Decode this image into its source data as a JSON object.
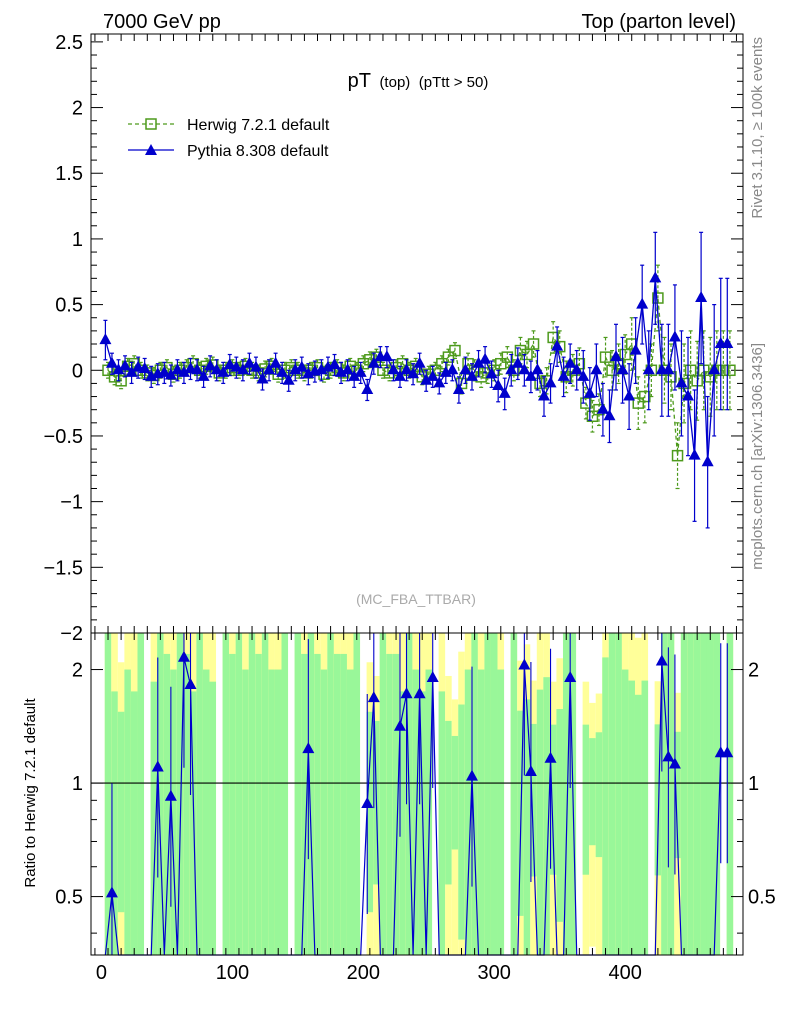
{
  "header": {
    "left": "7000 GeV pp",
    "right": "Top (parton level)"
  },
  "plot_title": {
    "main": "pT",
    "sub1": "(top)",
    "sub2": "(pTtt > 50)"
  },
  "watermark": "(MC_FBA_TTBAR)",
  "side_text": {
    "rivet": "Rivet 3.1.10, ≥ 100k events",
    "mcplots": "mcplots.cern.ch [arXiv:1306.3436]"
  },
  "legend": [
    {
      "label": "Herwig 7.2.1 default"
    },
    {
      "label": "Pythia 8.308 default"
    }
  ],
  "ratio_ylabel": "Ratio to Herwig 7.2.1 default",
  "colors": {
    "herwig": "#4d9a1c",
    "pythia": "#0000cc",
    "band_green": "#99f799",
    "band_yellow": "#ffff99",
    "side_text": "#888888"
  },
  "chart_data": {
    "type": "line",
    "xlim": [
      -8,
      490
    ],
    "main": {
      "ylim": [
        -2,
        2.56
      ],
      "y_tick_labels": [
        "2.5",
        "2",
        "1.5",
        "1",
        "0.5",
        "0",
        "−0.5",
        "−1",
        "−1.5",
        "−2"
      ],
      "y_tick_values": [
        2.5,
        2,
        1.5,
        1,
        0.5,
        0,
        -0.5,
        -1,
        -1.5,
        -2
      ]
    },
    "ratio": {
      "ylim": [
        0.35,
        2.5
      ],
      "log_scale": true,
      "y_tick_labels": [
        "2",
        "1",
        "0.5"
      ],
      "y_tick_values": [
        2,
        1,
        0.5
      ]
    },
    "x_tick_labels": [
      "0",
      "100",
      "200",
      "300",
      "400"
    ],
    "x_tick_values": [
      0,
      100,
      200,
      300,
      400
    ],
    "series": [
      {
        "name": "Herwig 7.2.1 default",
        "marker": "open-square",
        "style": "dashed",
        "x": [
          5,
          10,
          15,
          20,
          25,
          30,
          35,
          40,
          45,
          50,
          55,
          60,
          65,
          70,
          75,
          80,
          85,
          90,
          95,
          100,
          105,
          110,
          115,
          120,
          125,
          130,
          135,
          140,
          145,
          150,
          155,
          160,
          165,
          170,
          175,
          180,
          185,
          190,
          195,
          200,
          205,
          210,
          215,
          220,
          225,
          230,
          235,
          240,
          245,
          250,
          255,
          260,
          265,
          270,
          275,
          280,
          285,
          290,
          295,
          300,
          305,
          310,
          315,
          320,
          325,
          330,
          335,
          340,
          345,
          350,
          355,
          360,
          365,
          370,
          375,
          380,
          385,
          390,
          395,
          400,
          405,
          410,
          415,
          420,
          425,
          430,
          435,
          440,
          445,
          450,
          455,
          460,
          465,
          470,
          475,
          480
        ],
        "y": [
          0.0,
          -0.05,
          -0.08,
          0.03,
          0.05,
          0.0,
          -0.02,
          -0.04,
          0.0,
          0.02,
          -0.03,
          0.0,
          0.02,
          0.05,
          0.0,
          0.03,
          0.04,
          -0.02,
          0.0,
          0.02,
          0.0,
          0.03,
          0.0,
          -0.02,
          0.01,
          0.03,
          -0.03,
          0.0,
          0.02,
          0.0,
          -0.02,
          0.0,
          0.02,
          -0.03,
          0.0,
          0.02,
          -0.02,
          0.03,
          0.0,
          0.05,
          0.08,
          0.1,
          0.0,
          -0.02,
          0.02,
          0.05,
          0.0,
          0.03,
          -0.05,
          -0.03,
          0.0,
          0.05,
          0.1,
          0.15,
          -0.1,
          0.05,
          0.0,
          -0.05,
          -0.02,
          0.0,
          0.05,
          0.1,
          0.0,
          0.15,
          0.12,
          0.2,
          -0.1,
          -0.08,
          0.25,
          0.18,
          -0.05,
          0.0,
          0.05,
          -0.25,
          -0.35,
          -0.3,
          0.1,
          0.0,
          0.05,
          0.12,
          0.2,
          -0.25,
          -0.2,
          0.0,
          0.55,
          0.0,
          -0.05,
          -0.65,
          -0.1,
          0.0,
          -0.08,
          0.0,
          -0.05,
          0.0,
          0.0,
          0.0
        ],
        "yerr": [
          0.06,
          0.06,
          0.06,
          0.06,
          0.06,
          0.06,
          0.06,
          0.06,
          0.06,
          0.06,
          0.06,
          0.06,
          0.06,
          0.06,
          0.06,
          0.06,
          0.06,
          0.06,
          0.06,
          0.06,
          0.06,
          0.06,
          0.06,
          0.06,
          0.06,
          0.06,
          0.06,
          0.06,
          0.06,
          0.06,
          0.06,
          0.06,
          0.06,
          0.06,
          0.06,
          0.06,
          0.06,
          0.06,
          0.06,
          0.06,
          0.06,
          0.06,
          0.06,
          0.06,
          0.06,
          0.06,
          0.06,
          0.06,
          0.06,
          0.06,
          0.06,
          0.06,
          0.06,
          0.06,
          0.08,
          0.08,
          0.08,
          0.08,
          0.08,
          0.08,
          0.08,
          0.08,
          0.08,
          0.1,
          0.1,
          0.1,
          0.1,
          0.1,
          0.12,
          0.12,
          0.12,
          0.12,
          0.12,
          0.12,
          0.12,
          0.12,
          0.15,
          0.15,
          0.15,
          0.15,
          0.2,
          0.2,
          0.2,
          0.2,
          0.25,
          0.25,
          0.25,
          0.25,
          0.3,
          0.3,
          0.3,
          0.3,
          0.3,
          0.3,
          0.3,
          0.3
        ]
      },
      {
        "name": "Pythia 8.308 default",
        "marker": "filled-triangle",
        "style": "solid",
        "x": [
          3,
          8,
          13,
          18,
          23,
          28,
          33,
          38,
          43,
          48,
          53,
          58,
          63,
          68,
          73,
          78,
          83,
          88,
          93,
          98,
          103,
          108,
          113,
          118,
          123,
          128,
          133,
          138,
          143,
          148,
          153,
          158,
          163,
          168,
          173,
          178,
          183,
          188,
          193,
          198,
          203,
          208,
          213,
          218,
          223,
          228,
          233,
          238,
          243,
          248,
          253,
          258,
          263,
          268,
          273,
          278,
          283,
          288,
          293,
          298,
          303,
          308,
          313,
          318,
          323,
          328,
          333,
          338,
          343,
          348,
          353,
          358,
          363,
          368,
          373,
          378,
          383,
          388,
          393,
          398,
          403,
          408,
          413,
          418,
          423,
          428,
          433,
          438,
          443,
          448,
          453,
          458,
          463,
          468,
          473,
          478
        ],
        "y": [
          0.23,
          0.05,
          0.0,
          0.03,
          -0.02,
          0.02,
          0.01,
          -0.05,
          -0.03,
          -0.02,
          -0.04,
          0.0,
          -0.02,
          0.01,
          0.0,
          -0.05,
          0.03,
          0.0,
          -0.02,
          0.04,
          0.02,
          0.0,
          0.05,
          0.02,
          -0.07,
          0.0,
          0.05,
          -0.02,
          -0.08,
          0.0,
          0.02,
          -0.03,
          -0.01,
          0.0,
          0.02,
          0.04,
          -0.02,
          0.0,
          -0.05,
          -0.02,
          -0.15,
          0.05,
          0.1,
          0.1,
          0.0,
          -0.05,
          0.0,
          -0.03,
          0.05,
          -0.08,
          -0.05,
          -0.1,
          -0.02,
          0.0,
          -0.15,
          0.0,
          -0.05,
          0.05,
          0.08,
          -0.03,
          -0.12,
          -0.18,
          0.0,
          0.05,
          0.0,
          -0.05,
          0.0,
          -0.2,
          -0.1,
          0.18,
          -0.05,
          0.05,
          0.0,
          -0.05,
          -0.18,
          0.0,
          -0.3,
          -0.35,
          0.1,
          0.0,
          -0.2,
          0.15,
          0.5,
          0.0,
          0.7,
          0.0,
          0.0,
          0.25,
          -0.1,
          -0.2,
          -0.65,
          0.55,
          -0.7,
          0.0,
          0.2,
          0.2
        ],
        "yerr": [
          0.15,
          0.08,
          0.08,
          0.08,
          0.08,
          0.08,
          0.08,
          0.08,
          0.08,
          0.08,
          0.08,
          0.08,
          0.08,
          0.08,
          0.08,
          0.08,
          0.08,
          0.08,
          0.08,
          0.08,
          0.08,
          0.08,
          0.08,
          0.08,
          0.08,
          0.08,
          0.08,
          0.08,
          0.08,
          0.08,
          0.08,
          0.08,
          0.08,
          0.08,
          0.08,
          0.08,
          0.08,
          0.08,
          0.08,
          0.08,
          0.08,
          0.08,
          0.08,
          0.08,
          0.08,
          0.08,
          0.08,
          0.08,
          0.08,
          0.08,
          0.08,
          0.08,
          0.08,
          0.08,
          0.1,
          0.1,
          0.1,
          0.1,
          0.1,
          0.1,
          0.12,
          0.12,
          0.12,
          0.12,
          0.12,
          0.12,
          0.15,
          0.15,
          0.15,
          0.15,
          0.15,
          0.15,
          0.15,
          0.2,
          0.2,
          0.2,
          0.2,
          0.2,
          0.25,
          0.25,
          0.25,
          0.25,
          0.3,
          0.3,
          0.35,
          0.35,
          0.35,
          0.4,
          0.4,
          0.45,
          0.5,
          0.5,
          0.5,
          0.5,
          0.5,
          0.5
        ],
        "ratio": [
          0.3,
          0.51,
          0.3,
          0.3,
          0.3,
          0.3,
          0.3,
          0.3,
          1.1,
          0.3,
          0.92,
          0.3,
          2.15,
          1.82,
          0.3,
          0.3,
          0.3,
          0.3,
          0.3,
          0.3,
          0.3,
          0.3,
          0.3,
          0.3,
          0.3,
          0.3,
          0.3,
          0.3,
          0.3,
          0.3,
          0.3,
          1.23,
          0.3,
          0.3,
          0.3,
          0.3,
          0.3,
          0.3,
          0.3,
          0.3,
          0.88,
          1.68,
          0.3,
          0.3,
          0.3,
          1.41,
          1.72,
          0.3,
          1.72,
          0.3,
          1.9,
          0.3,
          0.3,
          0.3,
          0.3,
          0.3,
          1.04,
          0.3,
          0.3,
          0.3,
          0.3,
          0.3,
          0.3,
          0.34,
          2.05,
          1.07,
          0.3,
          0.3,
          1.16,
          0.3,
          0.3,
          1.9,
          0.3,
          0.3,
          0.3,
          0.3,
          0.3,
          0.3,
          0.3,
          0.3,
          0.3,
          0.3,
          0.3,
          0.3,
          0.3,
          2.1,
          1.17,
          1.12,
          0.3,
          0.3,
          0.3,
          0.3,
          0.3,
          0.3,
          1.2,
          1.2
        ]
      }
    ]
  }
}
